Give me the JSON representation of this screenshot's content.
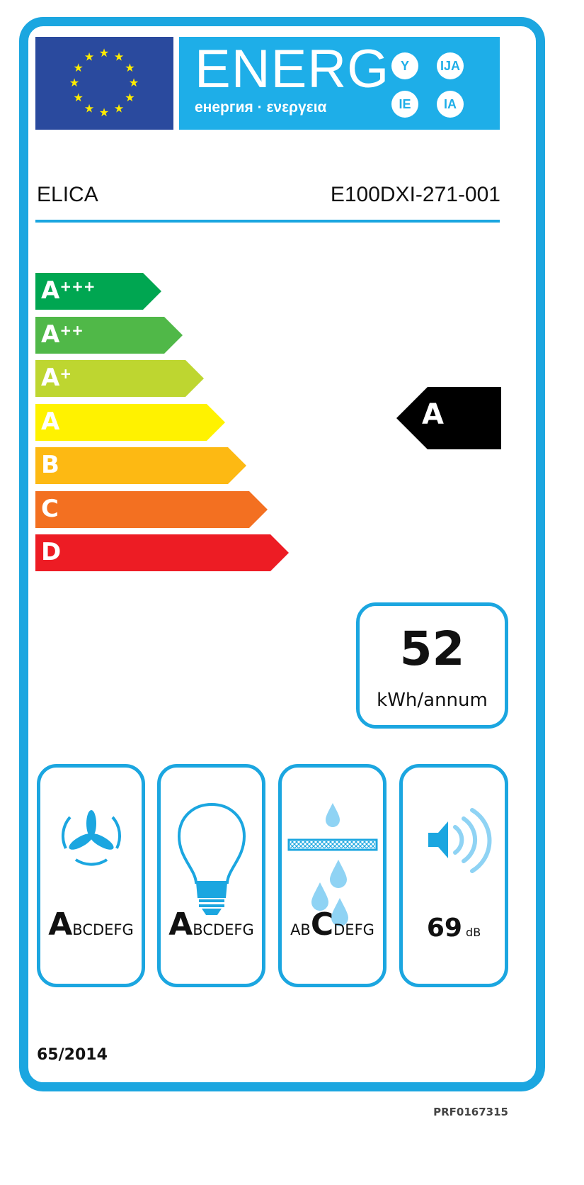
{
  "header": {
    "logo_text": "ENERG",
    "logo_subtitle": "енергия · ενεργεια",
    "language_suffixes": [
      "Y",
      "IJA",
      "IE",
      "IA"
    ],
    "flag_colors": {
      "background": "#2a4a9e",
      "stars": "#ffec00"
    }
  },
  "supplier": "ELICA",
  "model": "E100DXI-271-001",
  "efficiency_scale": [
    {
      "base": "A",
      "plus": "+++",
      "color": "#00a651"
    },
    {
      "base": "A",
      "plus": "++",
      "color": "#50b848"
    },
    {
      "base": "A",
      "plus": "+",
      "color": "#bed630"
    },
    {
      "base": "A",
      "plus": "",
      "color": "#fff200"
    },
    {
      "base": "B",
      "plus": "",
      "color": "#fdb913"
    },
    {
      "base": "C",
      "plus": "",
      "color": "#f37021"
    },
    {
      "base": "D",
      "plus": "",
      "color": "#ed1c24"
    }
  ],
  "rated_class": "A",
  "energy_consumption": {
    "value": "52",
    "unit": "kWh/annum"
  },
  "indicators": [
    {
      "icon": "fan-icon",
      "selected": "A",
      "before": "",
      "after": "BCDEFG"
    },
    {
      "icon": "light-bulb-icon",
      "selected": "A",
      "before": "",
      "after": "BCDEFG"
    },
    {
      "icon": "grease-filter-icon",
      "selected": "C",
      "before": "AB",
      "after": "DEFG"
    },
    {
      "icon": "speaker-noise-icon",
      "value": "69",
      "unit": "dB"
    }
  ],
  "regulation": "65/2014",
  "product_code": "PRF0167315",
  "accent_color": "#1ba6e0"
}
